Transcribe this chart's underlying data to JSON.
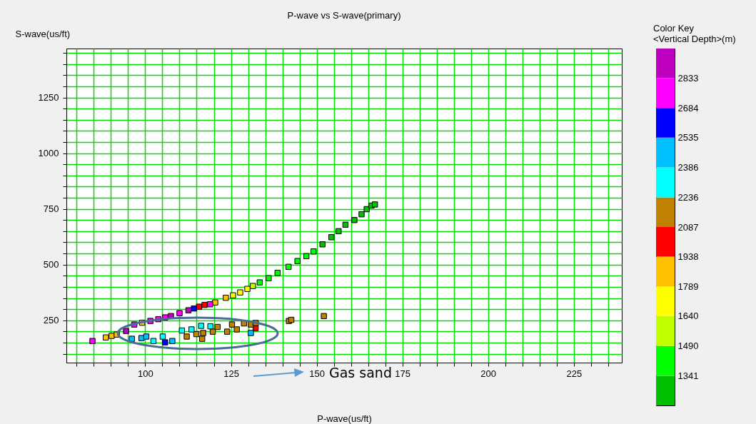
{
  "chart_data": {
    "type": "scatter",
    "title": "P-wave vs S-wave(primary)",
    "xlabel": "P-wave(us/ft)",
    "ylabel": "S-wave(us/ft)",
    "legend_title": "Color Key",
    "clabel": "<Vertical Depth>(m)",
    "annotations": [
      "Gas sand"
    ],
    "marker": "square",
    "grid": true,
    "xlim": [
      77,
      239
    ],
    "xticks": [
      {
        "value": 80,
        "label": null
      },
      {
        "value": 85,
        "label": null
      },
      {
        "value": 90,
        "label": null
      },
      {
        "value": 95,
        "label": null
      },
      100,
      {
        "value": 105,
        "label": null
      },
      {
        "value": 110,
        "label": null
      },
      {
        "value": 115,
        "label": null
      },
      {
        "value": 120,
        "label": null
      },
      125,
      {
        "value": 130,
        "label": null
      },
      {
        "value": 135,
        "label": null
      },
      {
        "value": 140,
        "label": null
      },
      {
        "value": 145,
        "label": null
      },
      150,
      {
        "value": 155,
        "label": null
      },
      {
        "value": 160,
        "label": null
      },
      {
        "value": 165,
        "label": null
      },
      {
        "value": 170,
        "label": null
      },
      175,
      {
        "value": 180,
        "label": null
      },
      {
        "value": 185,
        "label": null
      },
      {
        "value": 190,
        "label": null
      },
      {
        "value": 195,
        "label": null
      },
      200,
      {
        "value": 205,
        "label": null
      },
      {
        "value": 210,
        "label": null
      },
      {
        "value": 215,
        "label": null
      },
      {
        "value": 220,
        "label": null
      },
      225,
      {
        "value": 230,
        "label": null
      },
      {
        "value": 235,
        "label": null
      }
    ],
    "ylim": [
      60,
      1470
    ],
    "yticks": [
      {
        "value": 100,
        "label": null
      },
      {
        "value": 150,
        "label": null
      },
      {
        "value": 200,
        "label": null
      },
      250,
      {
        "value": 300,
        "label": null
      },
      {
        "value": 350,
        "label": null
      },
      {
        "value": 400,
        "label": null
      },
      {
        "value": 450,
        "label": null
      },
      500,
      {
        "value": 550,
        "label": null
      },
      {
        "value": 600,
        "label": null
      },
      {
        "value": 650,
        "label": null
      },
      {
        "value": 700,
        "label": null
      },
      750,
      {
        "value": 800,
        "label": null
      },
      {
        "value": 850,
        "label": null
      },
      {
        "value": 900,
        "label": null
      },
      {
        "value": 950,
        "label": null
      },
      1000,
      {
        "value": 1050,
        "label": null
      },
      {
        "value": 1100,
        "label": null
      },
      {
        "value": 1150,
        "label": null
      },
      {
        "value": 1200,
        "label": null
      },
      1250,
      {
        "value": 1300,
        "label": null
      },
      {
        "value": 1350,
        "label": null
      },
      {
        "value": 1400,
        "label": null
      },
      {
        "value": 1450,
        "label": null
      }
    ],
    "clim": [
      1192,
      2982
    ],
    "cticks": [
      1341,
      1490,
      1640,
      1789,
      1938,
      2087,
      2236,
      2386,
      2535,
      2684,
      2833
    ],
    "series": [
      {
        "color": "#00c000",
        "x": [
          151.7,
          154.3,
          156.4,
          158.4,
          161.0,
          163.1,
          164.6,
          166.0,
          167.0
        ],
        "values": [
          591,
          623,
          650,
          679,
          700,
          726,
          749,
          765,
          770
        ],
        "cvalues": [
          1270,
          1270,
          1270,
          1270,
          1270,
          1270,
          1270,
          1270,
          1270
        ]
      },
      {
        "color": "#00ff00",
        "x": [
          133.4,
          136.0,
          138.6,
          141.8,
          144.4,
          147.0,
          149.1
        ],
        "values": [
          420,
          439,
          463,
          490,
          516,
          538,
          559
        ],
        "cvalues": [
          1415,
          1415,
          1415,
          1415,
          1415,
          1415,
          1415
        ]
      },
      {
        "color": "#c0ff00",
        "x": [
          131.4
        ],
        "values": [
          404
        ],
        "cvalues": [
          1565
        ]
      },
      {
        "color": "#ffff00",
        "x": [
          125.6,
          127.7,
          129.8
        ],
        "values": [
          362,
          375,
          391
        ],
        "cvalues": [
          1715,
          1715,
          1715
        ]
      },
      {
        "color": "#ffc000",
        "x": [
          88.5,
          90.2,
          91.7,
          99.1,
          120.4,
          123.5
        ],
        "values": [
          173,
          180,
          186,
          239,
          330,
          351
        ],
        "cvalues": [
          1860,
          1860,
          1860,
          1860,
          1860,
          1860
        ]
      },
      {
        "color": "#ff0000",
        "x": [
          115.7,
          117.3,
          130.8,
          132.2
        ],
        "values": [
          311,
          319,
          null,
          215
        ],
        "cvalues": [
          2010,
          2010,
          null,
          2010
        ]
      },
      {
        "color": "#c08000",
        "x": [
          112.1,
          114.9,
          116.9,
          116.6,
          119.7,
          121.1,
          123.9,
          125.3,
          126.7,
          128.8,
          130.8,
          132.2,
          141.9,
          142.6,
          152.1
        ],
        "values": [
          177,
          188,
          193,
          167,
          199,
          220,
          199,
          231,
          209,
          236,
          231,
          238,
          247,
          252,
          269
        ],
        "cvalues": [
          2160,
          2160,
          2160,
          2160,
          2160,
          2160,
          2160,
          2160,
          2160,
          2160,
          2160,
          2160,
          2160,
          2160,
          2160
        ]
      },
      {
        "color": "#00ffff",
        "x": [
          102.4,
          105.1,
          110.7,
          113.5,
          116.3,
          119.0
        ],
        "values": [
          157,
          177,
          204,
          209,
          225,
          223
        ],
        "cvalues": [
          2310,
          2310,
          2310,
          2310,
          2310,
          2310
        ]
      },
      {
        "color": "#00c0ff",
        "x": [
          96.1,
          98.9,
          100.3,
          107.9,
          130.8
        ],
        "values": [
          167,
          170,
          177,
          157,
          193
        ],
        "cvalues": [
          2460,
          2460,
          2460,
          2460,
          2460
        ]
      },
      {
        "color": "#0000ff",
        "x": [
          105.8,
          114.2
        ],
        "values": [
          151,
          303
        ],
        "cvalues": [
          2610,
          2610
        ]
      },
      {
        "color": "#ff00ff",
        "x": [
          84.6,
          94.9,
          96.8,
          101.5,
          103.8,
          105.8,
          110.0,
          118.9
        ],
        "values": [
          157,
          null,
          231,
          247,
          255,
          263,
          282,
          322
        ],
        "cvalues": [
          2760,
          null,
          2760,
          2760,
          2760,
          2760,
          2760,
          2760
        ]
      },
      {
        "color": "#c000c0",
        "x": [
          94.4,
          107.5,
          112.6
        ],
        "values": [
          202,
          269,
          295
        ],
        "cvalues": [
          2900,
          2900,
          2900
        ]
      }
    ]
  }
}
